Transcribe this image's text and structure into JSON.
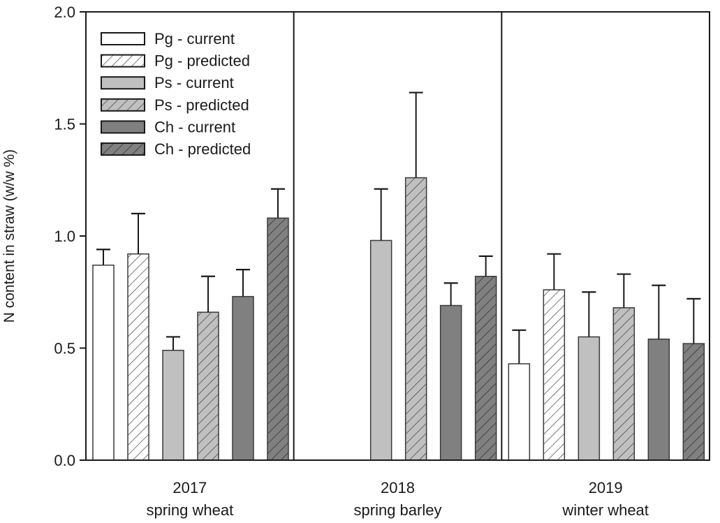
{
  "chart_data": {
    "type": "bar",
    "title": "",
    "xlabel": "",
    "ylabel": "N content in straw (w/w %)",
    "ylim": [
      0,
      2.0
    ],
    "yticks": [
      "0.0",
      "0.5",
      "1.0",
      "1.5",
      "2.0"
    ],
    "ytick_values": [
      0,
      0.5,
      1.0,
      1.5,
      2.0
    ],
    "grid": false,
    "legend_position": "top-left",
    "categories": [
      {
        "year": "2017",
        "crop": "spring wheat"
      },
      {
        "year": "2018",
        "crop": "spring barley"
      },
      {
        "year": "2019",
        "crop": "winter wheat"
      }
    ],
    "series": [
      {
        "name": "Pg - current",
        "fill": "#ffffff",
        "hatched": false,
        "values": [
          0.87,
          null,
          0.43
        ],
        "errors": [
          0.07,
          null,
          0.15
        ]
      },
      {
        "name": "Pg - predicted",
        "fill": "#ffffff",
        "hatched": true,
        "values": [
          0.92,
          null,
          0.76
        ],
        "errors": [
          0.18,
          null,
          0.16
        ]
      },
      {
        "name": "Ps - current",
        "fill": "#c0c0c0",
        "hatched": false,
        "values": [
          0.49,
          0.98,
          0.55
        ],
        "errors": [
          0.06,
          0.23,
          0.2
        ]
      },
      {
        "name": "Ps - predicted",
        "fill": "#c0c0c0",
        "hatched": true,
        "values": [
          0.66,
          1.26,
          0.68
        ],
        "errors": [
          0.16,
          0.38,
          0.15
        ]
      },
      {
        "name": "Ch - current",
        "fill": "#808080",
        "hatched": false,
        "values": [
          0.73,
          0.69,
          0.54
        ],
        "errors": [
          0.12,
          0.1,
          0.24
        ]
      },
      {
        "name": "Ch - predicted",
        "fill": "#808080",
        "hatched": true,
        "values": [
          1.08,
          0.82,
          0.52
        ],
        "errors": [
          0.13,
          0.09,
          0.2
        ]
      }
    ],
    "panel_dividers": true
  }
}
